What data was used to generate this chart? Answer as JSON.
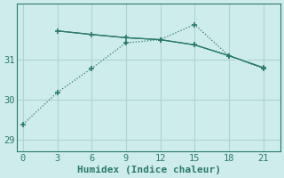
{
  "line1_x": [
    3,
    6,
    9,
    12,
    15,
    18,
    21
  ],
  "line1_y": [
    31.72,
    31.63,
    31.55,
    31.5,
    31.37,
    31.1,
    30.8
  ],
  "line2_x": [
    0,
    3,
    6,
    9,
    12,
    15,
    18,
    21
  ],
  "line2_y": [
    29.38,
    30.18,
    30.78,
    31.42,
    31.5,
    31.88,
    31.1,
    30.78
  ],
  "line_color": "#2a7a6a",
  "bg_color": "#ceecea",
  "grid_color": "#aed4d0",
  "xlabel": "Humidex (Indice chaleur)",
  "xlabel_fontsize": 8,
  "yticks": [
    29,
    30,
    31
  ],
  "xticks": [
    0,
    3,
    6,
    9,
    12,
    15,
    18,
    21
  ],
  "xlim": [
    -0.5,
    22.5
  ],
  "ylim": [
    28.7,
    32.4
  ]
}
